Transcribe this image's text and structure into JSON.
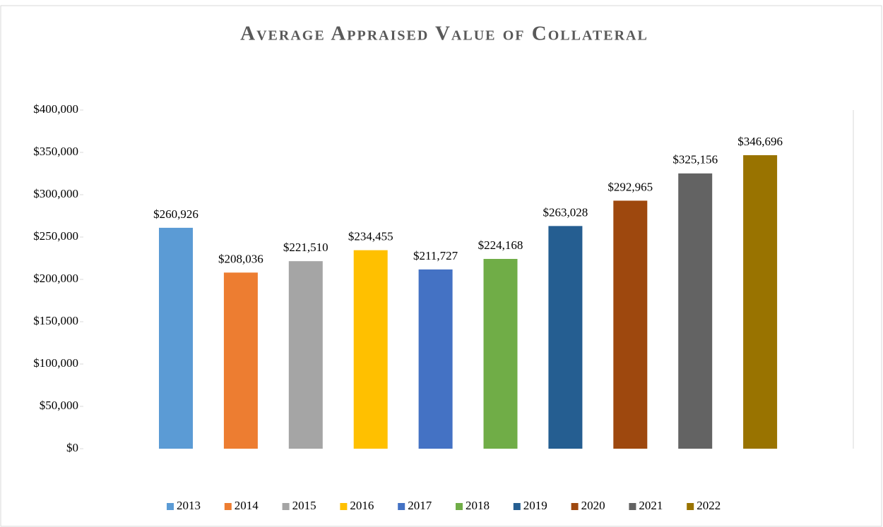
{
  "chart_data": {
    "type": "bar",
    "title": "Average Appraised Value of Collateral",
    "categories": [
      "2013",
      "2014",
      "2015",
      "2016",
      "2017",
      "2018",
      "2019",
      "2020",
      "2021",
      "2022"
    ],
    "values": [
      260926,
      208036,
      221510,
      234455,
      211727,
      224168,
      263028,
      292965,
      325156,
      346696
    ],
    "value_labels": [
      "$260,926",
      "$208,036",
      "$221,510",
      "$234,455",
      "$211,727",
      "$224,168",
      "$263,028",
      "$292,965",
      "$325,156",
      "$346,696"
    ],
    "colors": [
      "#5b9bd5",
      "#ed7d31",
      "#a5a5a5",
      "#ffc000",
      "#4472c4",
      "#70ad47",
      "#255e91",
      "#9e480e",
      "#636363",
      "#997300"
    ],
    "ylim": [
      0,
      400000
    ],
    "yticks": [
      {
        "value": 0,
        "label": "$0"
      },
      {
        "value": 50000,
        "label": "$50,000"
      },
      {
        "value": 100000,
        "label": "$100,000"
      },
      {
        "value": 150000,
        "label": "$150,000"
      },
      {
        "value": 200000,
        "label": "$200,000"
      },
      {
        "value": 250000,
        "label": "$250,000"
      },
      {
        "value": 300000,
        "label": "$300,000"
      },
      {
        "value": 350000,
        "label": "$350,000"
      },
      {
        "value": 400000,
        "label": "$400,000"
      }
    ],
    "legend": "bottom"
  }
}
